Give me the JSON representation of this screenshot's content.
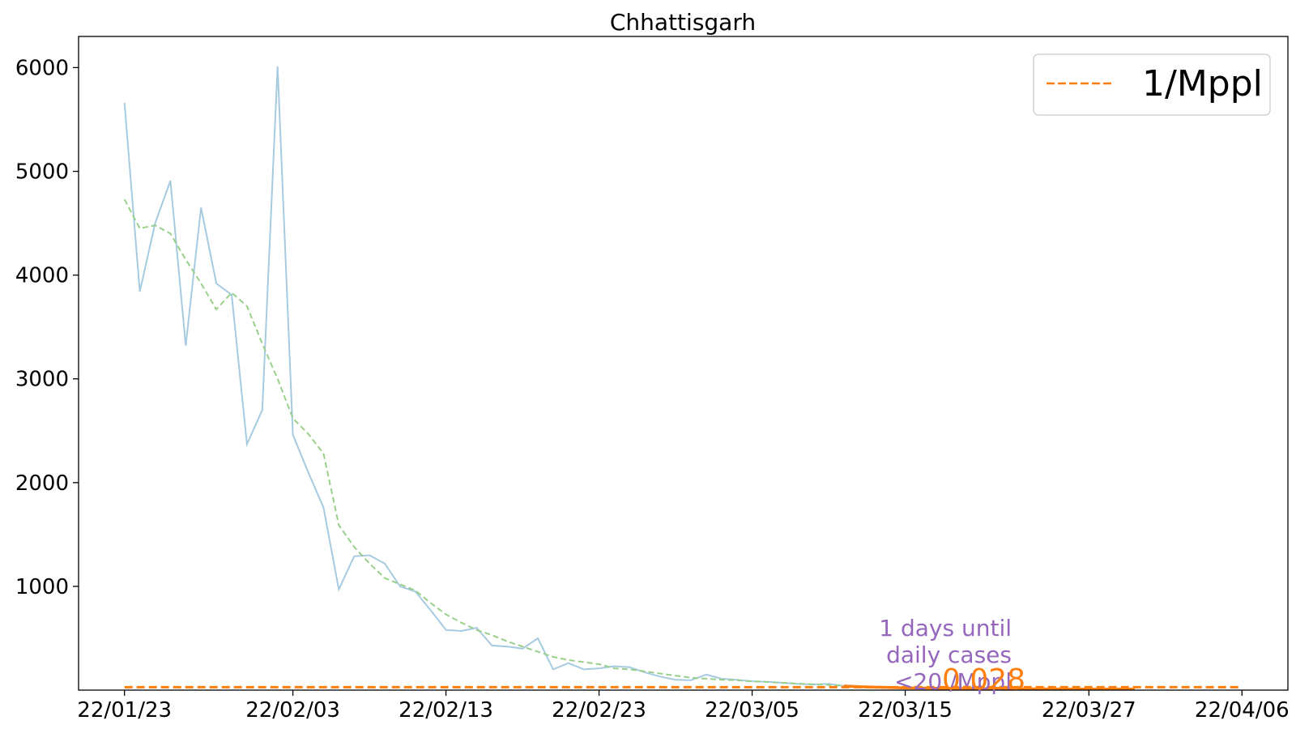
{
  "chart_data": {
    "type": "line",
    "title": "Chhattisgarh",
    "xlabel": "",
    "ylabel": "",
    "x_start": "2022-01-23",
    "xlim": [
      "2022-01-20",
      "2022-04-09"
    ],
    "ylim": [
      0,
      6300
    ],
    "x_tick_labels": [
      "22/01/23",
      "22/02/03",
      "22/02/13",
      "22/02/23",
      "22/03/05",
      "22/03/15",
      "22/03/27",
      "22/04/06"
    ],
    "x_tick_dates": [
      "2022-01-23",
      "2022-02-03",
      "2022-02-13",
      "2022-02-23",
      "2022-03-05",
      "2022-03-15",
      "2022-03-27",
      "2022-04-06"
    ],
    "y_ticks": [
      1000,
      2000,
      3000,
      4000,
      5000,
      6000
    ],
    "grid": false,
    "legend": {
      "placement": "top-right",
      "entries": [
        "1/Mppl"
      ]
    },
    "series": [
      {
        "style": "solid",
        "color": "#a6cae0",
        "values": [
          5660,
          3840,
          4500,
          4910,
          3320,
          4650,
          3920,
          3810,
          2370,
          2700,
          6010,
          2460,
          2100,
          1760,
          970,
          1290,
          1300,
          1220,
          1000,
          950,
          770,
          580,
          570,
          600,
          430,
          420,
          400,
          500,
          200,
          260,
          200,
          210,
          230,
          220,
          170,
          130,
          100,
          95,
          150,
          110,
          100,
          85,
          80,
          70,
          60,
          55,
          60,
          40,
          35,
          30,
          25,
          20,
          18,
          15,
          14,
          12,
          12,
          11,
          10,
          9
        ]
      },
      {
        "style": "dashed",
        "color": "#98d08a",
        "values": [
          4730,
          4450,
          4480,
          4400,
          4150,
          3920,
          3670,
          3830,
          3700,
          3340,
          3000,
          2620,
          2470,
          2280,
          1590,
          1380,
          1220,
          1080,
          1020,
          960,
          840,
          730,
          650,
          580,
          530,
          470,
          420,
          370,
          320,
          290,
          270,
          250,
          210,
          200,
          180,
          160,
          140,
          120,
          110,
          100,
          95,
          85,
          78,
          70,
          62,
          56,
          50,
          42,
          36,
          32,
          27,
          23,
          20,
          18,
          16,
          14,
          13,
          12,
          11,
          10
        ]
      },
      {
        "name": "1/Mppl",
        "style": "dashed",
        "color": "#ff7f0e",
        "constant": 28
      },
      {
        "style": "solid",
        "color": "#ff7f0e",
        "x_range": [
          "2022-03-11",
          "2022-03-30"
        ],
        "values": [
          40,
          33,
          28,
          25,
          22,
          20,
          18,
          16,
          15,
          14,
          13,
          12,
          12,
          11,
          11,
          10,
          10,
          10,
          10,
          9
        ]
      }
    ],
    "annotations": [
      {
        "text_lines": [
          "1 days until",
          "daily cases",
          "<20 /Mppl"
        ],
        "color": "#9467bd"
      },
      {
        "text": "0.028",
        "color": "#ff7f0e"
      }
    ]
  }
}
